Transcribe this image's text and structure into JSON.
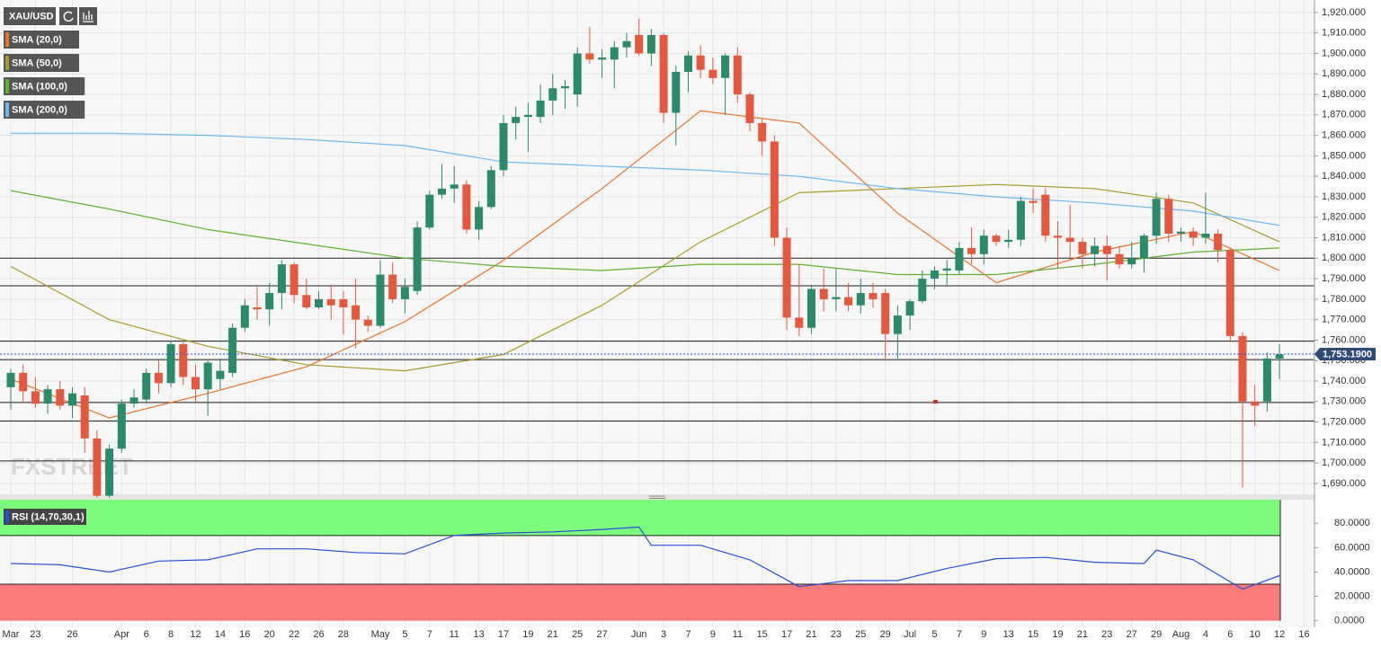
{
  "header": {
    "symbol": "XAU/USD",
    "watermark": "FXSTREET"
  },
  "chart_data": [
    {
      "type": "candlestick",
      "categories": [
        "Mar",
        null,
        "23",
        null,
        null,
        "26",
        null,
        null,
        null,
        "Apr",
        null,
        "6",
        null,
        "8",
        null,
        "12",
        null,
        "14",
        null,
        "16",
        null,
        "20",
        null,
        "22",
        null,
        "26",
        null,
        "28",
        null,
        null,
        "May",
        null,
        "5",
        null,
        "7",
        null,
        "11",
        null,
        "13",
        null,
        "17",
        null,
        "19",
        null,
        "21",
        null,
        "25",
        null,
        "27",
        null,
        null,
        "Jun",
        null,
        "3",
        null,
        "7",
        null,
        "9",
        null,
        "11",
        null,
        "15",
        null,
        "17",
        null,
        "21",
        null,
        "23",
        null,
        "25",
        null,
        "29",
        null,
        "Jul",
        null,
        "5",
        null,
        "7",
        null,
        "9",
        null,
        "13",
        null,
        "15",
        null,
        "19",
        null,
        "21",
        null,
        "23",
        null,
        "27",
        null,
        "29",
        null,
        "Aug",
        null,
        "4",
        null,
        "6",
        null,
        "10",
        null,
        "12",
        null,
        "16"
      ],
      "open": [
        1737,
        1744,
        1735,
        1729,
        1736,
        1728,
        1733,
        1712,
        1684,
        1707,
        1729,
        1731,
        1744,
        1739,
        1758,
        1742,
        1736,
        1741,
        1744,
        1766,
        1776,
        1775,
        1783,
        1797,
        1782,
        1776,
        1780,
        1780,
        1777,
        1770,
        1767,
        1792,
        1780,
        1784,
        1815,
        1831,
        1834,
        1836,
        1814,
        1825,
        1843,
        1866,
        1869,
        1869,
        1877,
        1883,
        1880,
        1900,
        1897,
        1897,
        1903,
        1909,
        1900,
        1909,
        1871,
        1891,
        1899,
        1892,
        1888,
        1899,
        1880,
        1866,
        1857,
        1810,
        1771,
        1766,
        1785,
        1780,
        1781,
        1777,
        1783,
        1783,
        1763,
        1772,
        1779,
        1790,
        1794,
        1794,
        1805,
        1802,
        1811,
        1808,
        1809,
        1828,
        1831,
        1811,
        1810,
        1808,
        1802,
        1806,
        1802,
        1797,
        1800,
        1811,
        1829,
        1812,
        1813,
        1810,
        1812,
        1804,
        1762,
        1730,
        1730,
        1751,
        null,
        null
      ],
      "high": [
        1746,
        1748,
        1742,
        1738,
        1740,
        1737,
        1737,
        1716,
        1709,
        1731,
        1736,
        1746,
        1750,
        1760,
        1759,
        1748,
        1750,
        1751,
        1768,
        1780,
        1786,
        1788,
        1799,
        1798,
        1790,
        1784,
        1787,
        1784,
        1790,
        1772,
        1799,
        1798,
        1790,
        1818,
        1833,
        1846,
        1845,
        1838,
        1828,
        1845,
        1870,
        1874,
        1876,
        1885,
        1890,
        1887,
        1903,
        1913,
        1902,
        1906,
        1910,
        1917,
        1912,
        1910,
        1894,
        1901,
        1904,
        1898,
        1900,
        1903,
        1881,
        1868,
        1860,
        1815,
        1797,
        1787,
        1795,
        1795,
        1788,
        1790,
        1788,
        1785,
        1777,
        1780,
        1794,
        1796,
        1799,
        1808,
        1815,
        1814,
        1812,
        1814,
        1830,
        1834,
        1834,
        1818,
        1826,
        1810,
        1810,
        1811,
        1806,
        1808,
        1812,
        1832,
        1831,
        1815,
        1815,
        1832,
        1814,
        1805,
        1764,
        1738,
        1754,
        1758,
        null,
        null
      ],
      "low": [
        1726,
        1730,
        1727,
        1724,
        1726,
        1722,
        1705,
        1683,
        1683,
        1705,
        1727,
        1729,
        1734,
        1737,
        1738,
        1729,
        1723,
        1736,
        1742,
        1764,
        1770,
        1767,
        1775,
        1778,
        1775,
        1775,
        1770,
        1763,
        1756,
        1764,
        1766,
        1778,
        1773,
        1782,
        1814,
        1829,
        1827,
        1812,
        1809,
        1824,
        1840,
        1858,
        1852,
        1866,
        1870,
        1873,
        1874,
        1895,
        1888,
        1883,
        1898,
        1899,
        1894,
        1866,
        1855,
        1881,
        1888,
        1885,
        1870,
        1876,
        1862,
        1850,
        1806,
        1765,
        1762,
        1763,
        1774,
        1774,
        1774,
        1773,
        1776,
        1751,
        1751,
        1765,
        1778,
        1785,
        1787,
        1792,
        1797,
        1797,
        1806,
        1805,
        1806,
        1822,
        1808,
        1795,
        1800,
        1795,
        1796,
        1789,
        1795,
        1795,
        1793,
        1807,
        1808,
        1808,
        1806,
        1807,
        1798,
        1759,
        1688,
        1718,
        1725,
        1741,
        null,
        null
      ],
      "close": [
        1744,
        1735,
        1729,
        1736,
        1728,
        1734,
        1712,
        1684,
        1707,
        1729,
        1732,
        1744,
        1739,
        1758,
        1742,
        1736,
        1749,
        1745,
        1766,
        1777,
        1775,
        1783,
        1797,
        1782,
        1776,
        1780,
        1777,
        1776,
        1770,
        1767,
        1792,
        1780,
        1786,
        1815,
        1831,
        1834,
        1836,
        1814,
        1825,
        1843,
        1866,
        1869,
        1870,
        1877,
        1883,
        1884,
        1900,
        1897,
        1898,
        1903,
        1906,
        1900,
        1909,
        1871,
        1891,
        1899,
        1892,
        1888,
        1899,
        1880,
        1866,
        1857,
        1810,
        1771,
        1766,
        1785,
        1780,
        1781,
        1777,
        1783,
        1780,
        1763,
        1772,
        1779,
        1790,
        1794,
        1795,
        1805,
        1802,
        1811,
        1808,
        1809,
        1828,
        1827,
        1811,
        1810,
        1808,
        1802,
        1806,
        1802,
        1797,
        1800,
        1811,
        1829,
        1812,
        1813,
        1810,
        1812,
        1804,
        1762,
        1730,
        1728,
        1751,
        1753,
        null,
        null
      ],
      "up_color": "#2a8a6a",
      "down_color": "#e5583e",
      "ylim": [
        1684.7,
        1926.1
      ],
      "yticks": [
        {
          "value": 1690,
          "label": "1,690.000"
        },
        {
          "value": 1700,
          "label": "1,700.000"
        },
        {
          "value": 1710,
          "label": "1,710.000"
        },
        {
          "value": 1720,
          "label": "1,720.000"
        },
        {
          "value": 1730,
          "label": "1,730.000"
        },
        {
          "value": 1740,
          "label": "1,740.000"
        },
        {
          "value": 1750,
          "label": "1,750.000"
        },
        {
          "value": 1760,
          "label": "1,760.000"
        },
        {
          "value": 1770,
          "label": "1,770.000"
        },
        {
          "value": 1780,
          "label": "1,780.000"
        },
        {
          "value": 1790,
          "label": "1,790.000"
        },
        {
          "value": 1800,
          "label": "1,800.000"
        },
        {
          "value": 1810,
          "label": "1,810.000"
        },
        {
          "value": 1820,
          "label": "1,820.000"
        },
        {
          "value": 1830,
          "label": "1,830.000"
        },
        {
          "value": 1840,
          "label": "1,840.000"
        },
        {
          "value": 1850,
          "label": "1,850.000"
        },
        {
          "value": 1860,
          "label": "1,860.000"
        },
        {
          "value": 1870,
          "label": "1,870.000"
        },
        {
          "value": 1880,
          "label": "1,880.000"
        },
        {
          "value": 1890,
          "label": "1,890.000"
        },
        {
          "value": 1900,
          "label": "1,900.000"
        },
        {
          "value": 1910,
          "label": "1,910.000"
        },
        {
          "value": 1920,
          "label": "1,920.000"
        }
      ],
      "levels": [
        1800,
        1786.5,
        1759.5,
        1750.5,
        1729.5,
        1720.5,
        1701
      ],
      "last": {
        "value": 1753.19,
        "label": "1,753.1900"
      },
      "grid": true,
      "indicators": [
        {
          "name": "SMA (20,0)",
          "color": "#e8752e",
          "x": [
            0,
            8,
            16,
            24,
            32,
            40,
            48,
            56,
            64,
            72,
            80,
            88,
            96,
            103
          ],
          "values": [
            1741,
            1722,
            1734,
            1747,
            1769,
            1799,
            1834,
            1872,
            1866,
            1822,
            1788,
            1803,
            1813,
            1794
          ]
        },
        {
          "name": "SMA (50,0)",
          "color": "#a89a2c",
          "x": [
            0,
            8,
            16,
            24,
            32,
            40,
            48,
            56,
            64,
            72,
            80,
            88,
            96,
            103
          ],
          "values": [
            1796,
            1770,
            1757,
            1748,
            1745,
            1753,
            1777,
            1808,
            1832,
            1834,
            1836,
            1834,
            1827,
            1808
          ]
        },
        {
          "name": "SMA (100,0)",
          "color": "#5fb02e",
          "x": [
            0,
            8,
            16,
            24,
            32,
            40,
            48,
            56,
            64,
            72,
            80,
            88,
            96,
            103
          ],
          "values": [
            1833,
            1824,
            1814,
            1807,
            1800,
            1796,
            1794,
            1797,
            1797,
            1792,
            1792,
            1797,
            1803,
            1805
          ]
        },
        {
          "name": "SMA (200,0)",
          "color": "#6db8f0",
          "x": [
            0,
            8,
            16,
            24,
            32,
            40,
            48,
            56,
            64,
            72,
            80,
            88,
            96,
            103
          ],
          "values": [
            1861,
            1861,
            1860,
            1858,
            1855,
            1847,
            1845,
            1843,
            1840,
            1834,
            1830,
            1827,
            1823,
            1816
          ]
        }
      ]
    },
    {
      "type": "line",
      "name": "RSI (14,70,30,1)",
      "color": "#2a4fd6",
      "x": [
        0,
        4,
        8,
        12,
        16,
        20,
        24,
        28,
        32,
        36,
        40,
        44,
        48,
        51,
        52,
        56,
        60,
        64,
        68,
        72,
        76,
        80,
        84,
        88,
        92,
        93,
        96,
        100,
        103
      ],
      "values": [
        47,
        46,
        40,
        49,
        50,
        59,
        59,
        56,
        55,
        70,
        72,
        73,
        75,
        77,
        62,
        62,
        50,
        28,
        33,
        33,
        43,
        51,
        52,
        48,
        47,
        58,
        50,
        26,
        37
      ],
      "overbought": 70,
      "oversold": 30,
      "overbought_color": "#7cfb7c",
      "oversold_color": "#fb7b7b",
      "ylim": [
        -5.4,
        99.4
      ],
      "yticks": [
        {
          "value": 0,
          "label": "0.0000"
        },
        {
          "value": 20,
          "label": "20.0000"
        },
        {
          "value": 40,
          "label": "40.0000"
        },
        {
          "value": 60,
          "label": "60.0000"
        },
        {
          "value": 80,
          "label": "80.0000"
        }
      ]
    }
  ]
}
